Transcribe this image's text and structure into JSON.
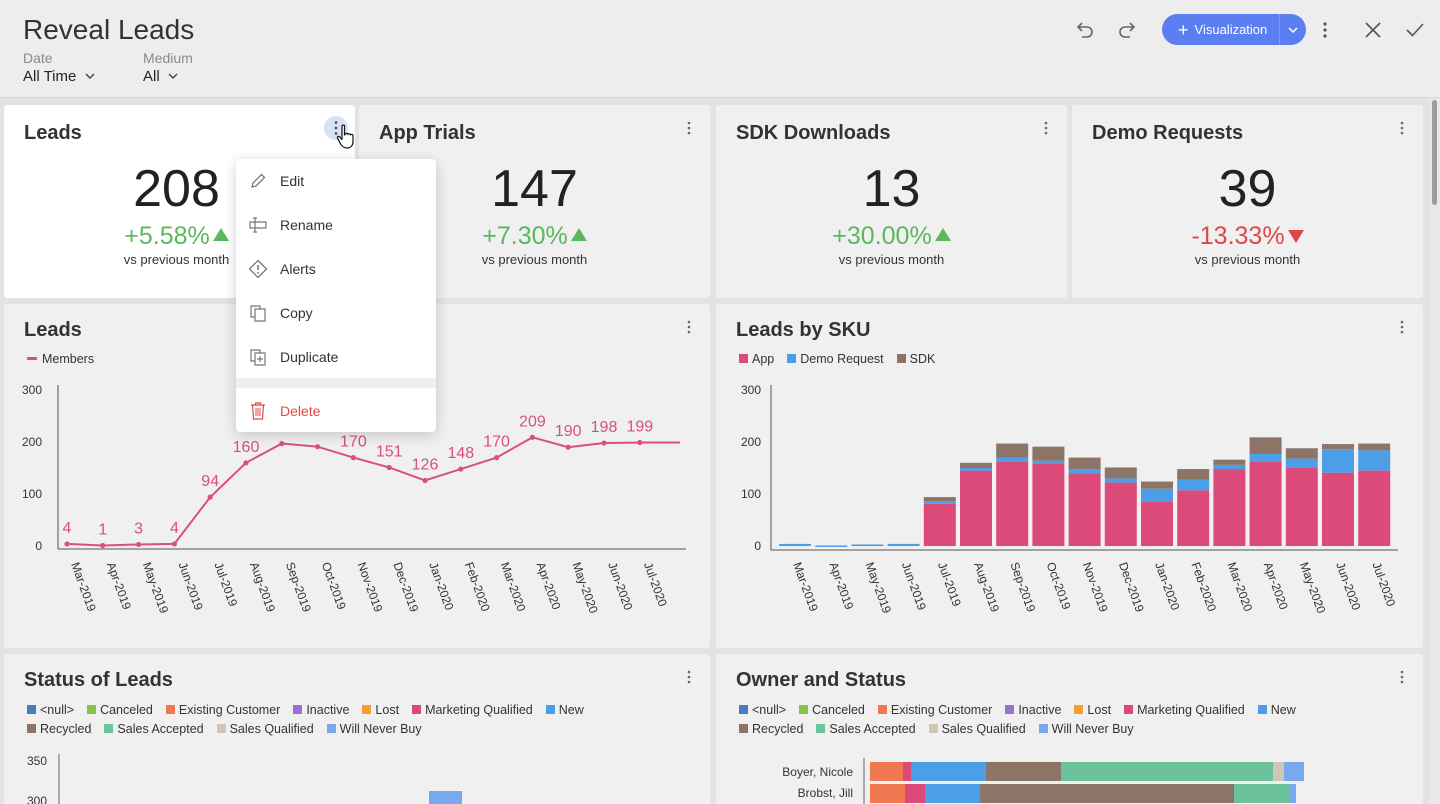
{
  "header": {
    "title": "Reveal Leads",
    "filters": [
      {
        "label": "Date",
        "value": "All Time"
      },
      {
        "label": "Medium",
        "value": "All"
      }
    ],
    "visualization_button": "Visualization"
  },
  "kpis": [
    {
      "title": "Leads",
      "value": "208",
      "delta": "+5.58%",
      "trend": "up",
      "note": "vs previous month"
    },
    {
      "title": "App Trials",
      "value": "147",
      "delta": "+7.30%",
      "trend": "up",
      "note": "vs previous month"
    },
    {
      "title": "SDK Downloads",
      "value": "13",
      "delta": "+30.00%",
      "trend": "up",
      "note": "vs previous month"
    },
    {
      "title": "Demo Requests",
      "value": "39",
      "delta": "-13.33%",
      "trend": "down",
      "note": "vs previous month"
    }
  ],
  "context_menu": {
    "items": [
      "Edit",
      "Rename",
      "Alerts",
      "Copy",
      "Duplicate"
    ],
    "delete": "Delete"
  },
  "leads_chart": {
    "title": "Leads",
    "chart_data": {
      "type": "line",
      "series": [
        {
          "name": "Members",
          "values": [
            4,
            1,
            3,
            4,
            94,
            160,
            197,
            191,
            170,
            151,
            126,
            148,
            170,
            209,
            190,
            198,
            199
          ]
        }
      ],
      "data_labels": [
        "4",
        "1",
        "3",
        "4",
        "94",
        "160",
        "",
        "",
        "170",
        "151",
        "126",
        "148",
        "170",
        "209",
        "190",
        "198",
        "199"
      ],
      "categories": [
        "Mar-2019",
        "Apr-2019",
        "May-2019",
        "Jun-2019",
        "Jul-2019",
        "Aug-2019",
        "Sep-2019",
        "Oct-2019",
        "Nov-2019",
        "Dec-2019",
        "Jan-2020",
        "Feb-2020",
        "Mar-2020",
        "Apr-2020",
        "May-2020",
        "Jun-2020",
        "Jul-2020"
      ],
      "yticks": [
        "300",
        "200",
        "100",
        "0"
      ],
      "ylim": [
        0,
        300
      ],
      "color": "#d9507a"
    }
  },
  "sku_chart": {
    "title": "Leads by SKU",
    "chart_data": {
      "type": "bar",
      "stacked": true,
      "categories": [
        "Mar-2019",
        "Apr-2019",
        "May-2019",
        "Jun-2019",
        "Jul-2019",
        "Aug-2019",
        "Sep-2019",
        "Oct-2019",
        "Nov-2019",
        "Dec-2019",
        "Jan-2020",
        "Feb-2020",
        "Mar-2020",
        "Apr-2020",
        "May-2020",
        "Jun-2020",
        "Jul-2020"
      ],
      "series": [
        {
          "name": "App",
          "color": "#dc4a7a",
          "values": [
            0,
            0,
            0,
            0,
            81,
            145,
            163,
            159,
            140,
            122,
            86,
            107,
            148,
            163,
            150,
            141,
            145
          ]
        },
        {
          "name": "Demo Request",
          "color": "#4c9fe6",
          "values": [
            4,
            1,
            3,
            4,
            5,
            5,
            7,
            5,
            8,
            8,
            24,
            21,
            8,
            14,
            18,
            45,
            39
          ]
        },
        {
          "name": "SDK",
          "color": "#8c7467",
          "values": [
            0,
            0,
            0,
            0,
            8,
            10,
            27,
            27,
            22,
            21,
            14,
            20,
            10,
            32,
            20,
            10,
            13
          ]
        }
      ],
      "yticks": [
        "300",
        "200",
        "100",
        "0"
      ],
      "ylim": [
        0,
        300
      ]
    }
  },
  "status_chart": {
    "title": "Status of Leads",
    "legend": [
      {
        "name": "<null>",
        "color": "#4a7bbf"
      },
      {
        "name": "Canceled",
        "color": "#8bc34a"
      },
      {
        "name": "Existing Customer",
        "color": "#f07850"
      },
      {
        "name": "Inactive",
        "color": "#9a70d8"
      },
      {
        "name": "Lost",
        "color": "#f0a030"
      },
      {
        "name": "Marketing Qualified",
        "color": "#dc4a7a"
      },
      {
        "name": "New",
        "color": "#4c9fe6"
      },
      {
        "name": "Recycled",
        "color": "#8c7467"
      },
      {
        "name": "Sales Accepted",
        "color": "#6cc29a"
      },
      {
        "name": "Sales Qualified",
        "color": "#cfc6b4"
      },
      {
        "name": "Will Never Buy",
        "color": "#7aa8f0"
      }
    ],
    "yticks": [
      "350",
      "300"
    ]
  },
  "owner_chart": {
    "title": "Owner and Status",
    "rows": [
      "Boyer, Nicole",
      "Brobst, Jill"
    ]
  }
}
